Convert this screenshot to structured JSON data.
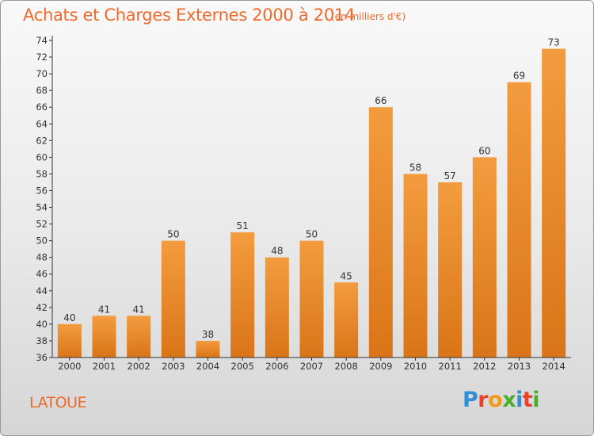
{
  "chart_data": {
    "type": "bar",
    "title": "Achats et Charges Externes 2000 à 2014",
    "subtitle": "(en milliers d'€)",
    "categories": [
      "2000",
      "2001",
      "2002",
      "2003",
      "2004",
      "2005",
      "2006",
      "2007",
      "2008",
      "2009",
      "2010",
      "2011",
      "2012",
      "2013",
      "2014"
    ],
    "values": [
      40,
      41,
      41,
      50,
      38,
      51,
      48,
      50,
      45,
      66,
      58,
      57,
      60,
      69,
      73
    ],
    "ylim": [
      36,
      74
    ],
    "yticks": [
      36,
      38,
      40,
      42,
      44,
      46,
      48,
      50,
      52,
      54,
      56,
      58,
      60,
      62,
      64,
      66,
      68,
      70,
      72,
      74
    ],
    "grid": false,
    "bar_color": "#f39c3f",
    "bar_color_dark": "#d97518"
  },
  "footer": {
    "commune": "LATOUE",
    "brand_letters": [
      "P",
      "r",
      "o",
      "x",
      "i",
      "t",
      "i"
    ],
    "brand_colors": [
      "#2f8fd6",
      "#e8402a",
      "#f29a1a",
      "#4caf2c",
      "#2f8fd6",
      "#e8402a",
      "#4caf2c"
    ]
  }
}
